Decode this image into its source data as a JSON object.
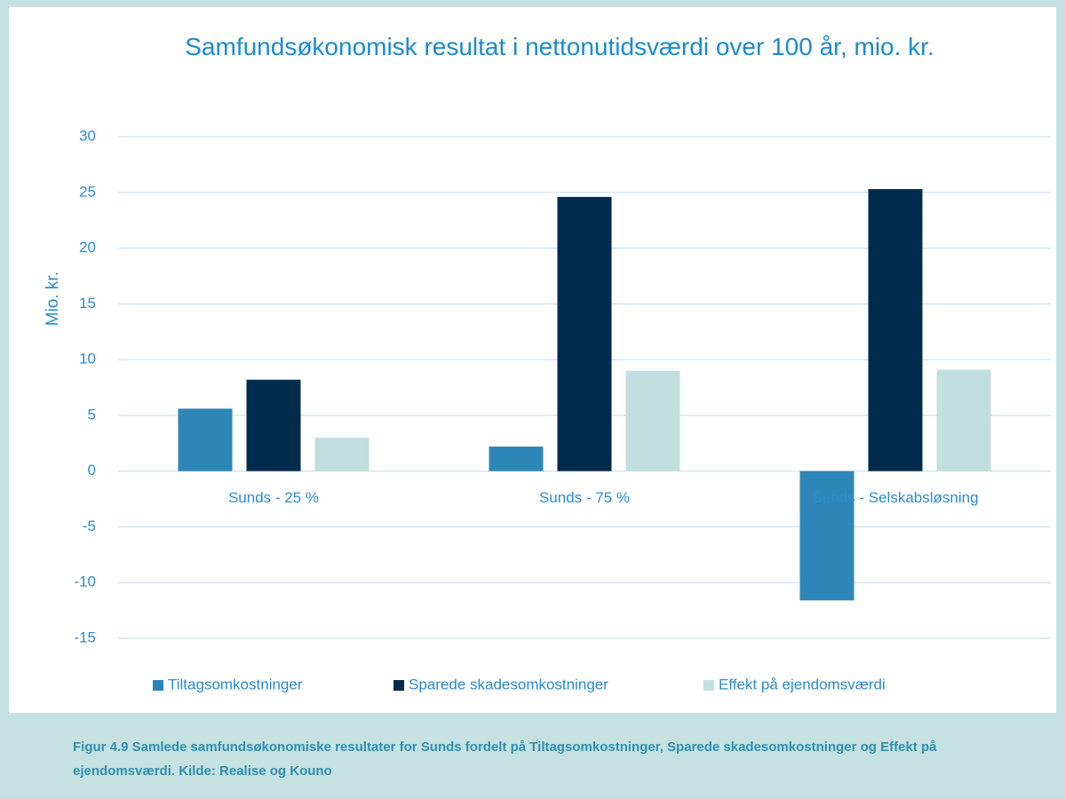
{
  "chart_data": {
    "type": "bar",
    "title": "Samfundsøkonomisk resultat i nettonutidsværdi over 100 år, mio. kr.",
    "y_label": "Mio. kr.",
    "categories": [
      "Sunds - 25 %",
      "Sunds - 75 %",
      "Sunds - Selskabsløsning"
    ],
    "series": [
      {
        "name": "Tiltagsomkostninger",
        "color": "#2e86b8",
        "values": [
          5.6,
          2.2,
          -11.6
        ]
      },
      {
        "name": "Sparede skadesomkostninger",
        "color": "#002b4d",
        "values": [
          8.2,
          24.6,
          25.3
        ]
      },
      {
        "name": "Effekt på ejendomsværdi",
        "color": "#c2dfe0",
        "values": [
          3.0,
          9.0,
          9.1
        ]
      }
    ],
    "ylim": [
      -15,
      30
    ],
    "yticks": [
      -15,
      -10,
      -5,
      0,
      5,
      10,
      15,
      20,
      25,
      30
    ],
    "grid": true,
    "legend": "bottom",
    "caption": "Figur 4.9 Samlede samfundsøkonomiske resultater for Sunds fordelt på Tiltagsomkostninger, Sparede skadesomkostninger og Effekt på ejendomsværdi. Kilde: Realise og Kouno"
  }
}
